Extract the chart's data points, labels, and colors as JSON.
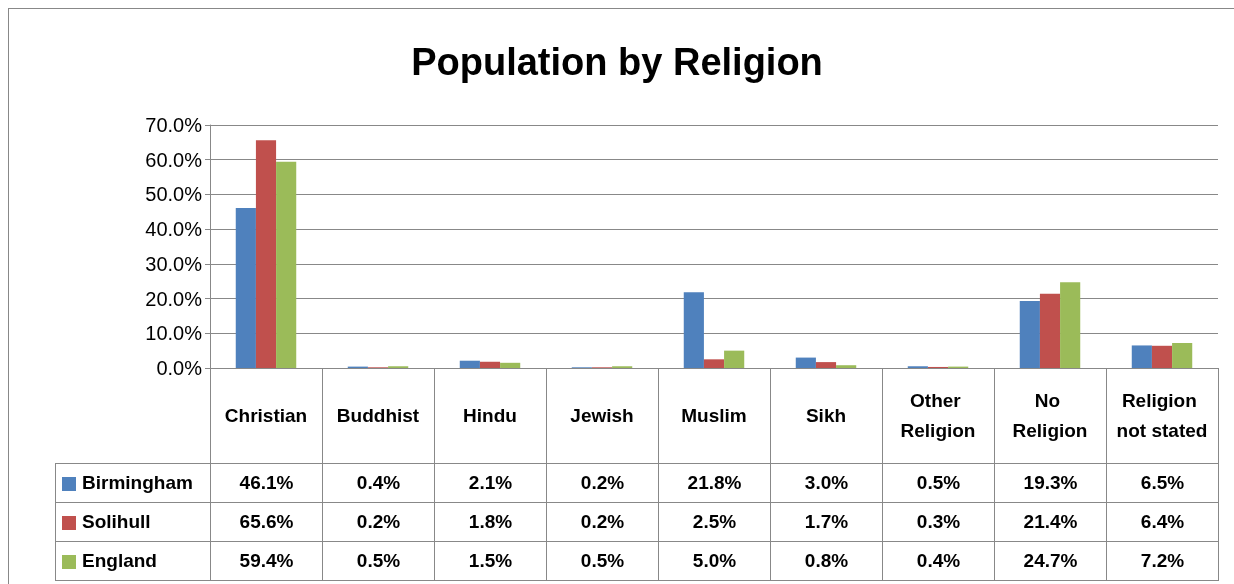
{
  "chart_data": {
    "type": "bar",
    "title": "Population by Religion",
    "categories": [
      "Christian",
      "Buddhist",
      "Hindu",
      "Jewish",
      "Muslim",
      "Sikh",
      "Other Religion",
      "No Religion",
      "Religion not stated"
    ],
    "series": [
      {
        "name": "Birmingham",
        "color": "#4f81bd",
        "values": [
          46.1,
          0.4,
          2.1,
          0.2,
          21.8,
          3.0,
          0.5,
          19.3,
          6.5
        ],
        "value_labels": [
          "46.1%",
          "0.4%",
          "2.1%",
          "0.2%",
          "21.8%",
          "3.0%",
          "0.5%",
          "19.3%",
          "6.5%"
        ]
      },
      {
        "name": "Solihull",
        "color": "#c0504d",
        "values": [
          65.6,
          0.2,
          1.8,
          0.2,
          2.5,
          1.7,
          0.3,
          21.4,
          6.4
        ],
        "value_labels": [
          "65.6%",
          "0.2%",
          "1.8%",
          "0.2%",
          "2.5%",
          "1.7%",
          "0.3%",
          "21.4%",
          "6.4%"
        ]
      },
      {
        "name": "England",
        "color": "#9bbb59",
        "values": [
          59.4,
          0.5,
          1.5,
          0.5,
          5.0,
          0.8,
          0.4,
          24.7,
          7.2
        ],
        "value_labels": [
          "59.4%",
          "0.5%",
          "1.5%",
          "0.5%",
          "5.0%",
          "0.8%",
          "0.4%",
          "24.7%",
          "7.2%"
        ]
      }
    ],
    "ylim": [
      0,
      70
    ],
    "yticks": [
      {
        "value": 0,
        "label": "0.0%"
      },
      {
        "value": 10,
        "label": "10.0%"
      },
      {
        "value": 20,
        "label": "20.0%"
      },
      {
        "value": 30,
        "label": "30.0%"
      },
      {
        "value": 40,
        "label": "40.0%"
      },
      {
        "value": 50,
        "label": "50.0%"
      },
      {
        "value": 60,
        "label": "60.0%"
      },
      {
        "value": 70,
        "label": "70.0%"
      }
    ],
    "grid": "y",
    "legend": "bottom left"
  }
}
